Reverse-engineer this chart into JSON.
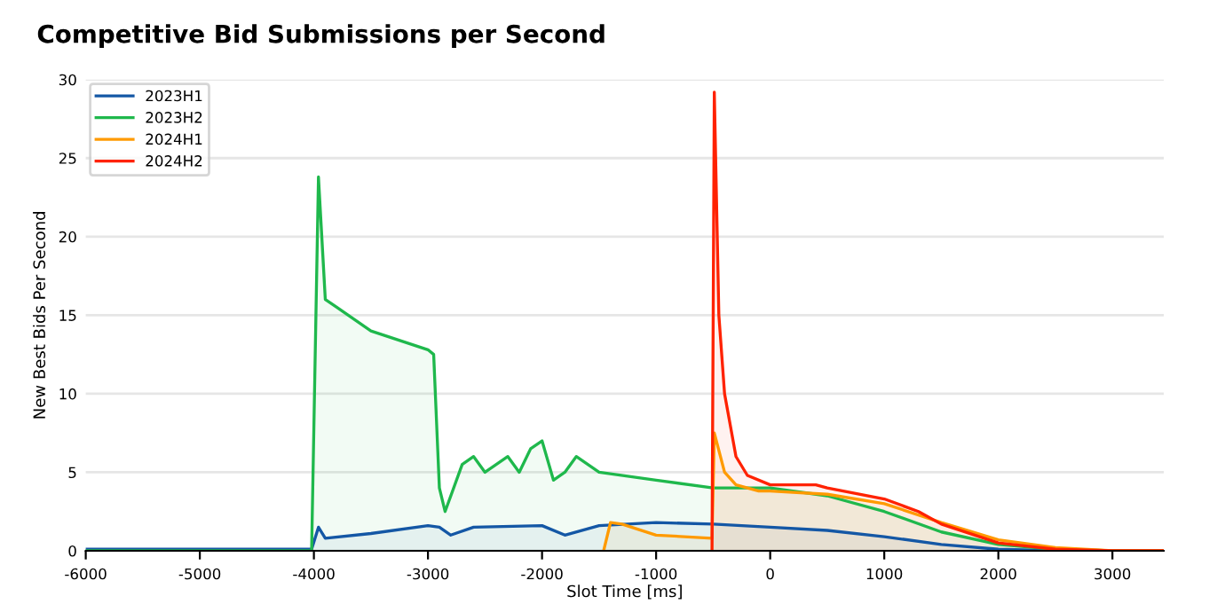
{
  "chart_data": {
    "type": "area",
    "title": "Competitive Bid Submissions per Second",
    "xlabel": "Slot Time [ms]",
    "ylabel": "New Best Bids Per Second",
    "xlim": [
      -6000,
      3450
    ],
    "xticks": [
      -6000,
      -5000,
      -4000,
      -3000,
      -2000,
      -1000,
      0,
      1000,
      2000,
      3000
    ],
    "ylim": [
      0,
      30
    ],
    "yticks": [
      0,
      5,
      10,
      15,
      20,
      25,
      30
    ],
    "grid": "y",
    "legend": "top left",
    "series": [
      {
        "name": "2023H1",
        "color": "#1457a5",
        "x": [
          -6000,
          -4020,
          -3960,
          -3900,
          -3500,
          -3000,
          -2900,
          -2800,
          -2600,
          -2000,
          -1800,
          -1500,
          -1000,
          -500,
          0,
          500,
          1000,
          1500,
          2000,
          2500,
          3450
        ],
        "values": [
          0.1,
          0.1,
          1.5,
          0.8,
          1.1,
          1.6,
          1.5,
          1.0,
          1.5,
          1.6,
          1.0,
          1.6,
          1.8,
          1.7,
          1.5,
          1.3,
          0.9,
          0.4,
          0.1,
          0,
          0
        ]
      },
      {
        "name": "2023H2",
        "color": "#1fb84c",
        "x": [
          -6000,
          -4020,
          -3960,
          -3900,
          -3800,
          -3500,
          -3000,
          -2950,
          -2900,
          -2850,
          -2700,
          -2600,
          -2500,
          -2300,
          -2200,
          -2100,
          -2000,
          -1900,
          -1800,
          -1700,
          -1500,
          -1000,
          -500,
          0,
          500,
          1000,
          1500,
          2000,
          2500,
          3000,
          3450
        ],
        "values": [
          0,
          0,
          23.8,
          16,
          15.5,
          14,
          12.8,
          12.5,
          4,
          2.5,
          5.5,
          6,
          5,
          6,
          5,
          6.5,
          7,
          4.5,
          5,
          6,
          5,
          4.5,
          4,
          4,
          3.5,
          2.5,
          1.2,
          0.4,
          0.1,
          0,
          0
        ]
      },
      {
        "name": "2024H1",
        "color": "#ff9a00",
        "x": [
          -1460,
          -1400,
          -1300,
          -1000,
          -510,
          -490,
          -400,
          -300,
          -100,
          0,
          500,
          1000,
          1500,
          2000,
          2500,
          3000,
          3450
        ],
        "values": [
          0,
          1.8,
          1.7,
          1.0,
          0.8,
          7.5,
          5,
          4.2,
          3.8,
          3.8,
          3.6,
          3,
          1.8,
          0.7,
          0.2,
          0,
          0
        ]
      },
      {
        "name": "2024H2",
        "color": "#ff2200",
        "x": [
          -510,
          -490,
          -450,
          -400,
          -300,
          -200,
          0,
          400,
          500,
          1000,
          1300,
          1500,
          2000,
          2500,
          3000,
          3450
        ],
        "values": [
          0,
          29.2,
          15,
          10,
          6,
          4.8,
          4.2,
          4.2,
          4,
          3.3,
          2.5,
          1.7,
          0.5,
          0.1,
          0,
          0
        ]
      }
    ]
  }
}
